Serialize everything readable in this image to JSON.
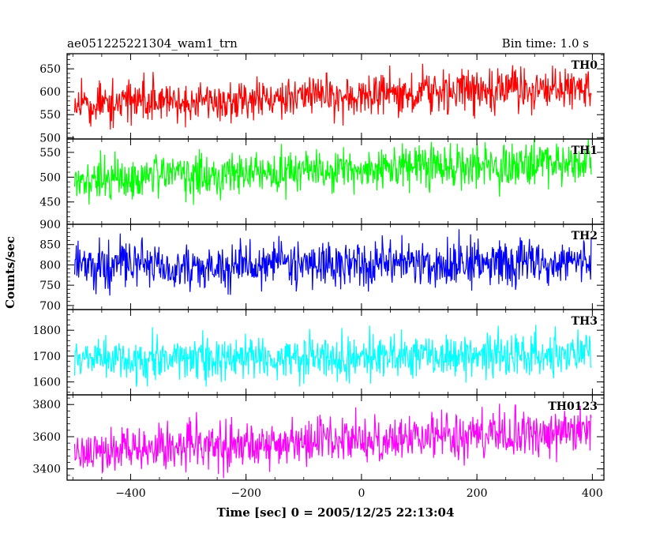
{
  "header": {
    "title": "ae051225221304_wam1_trn",
    "bin_time": "Bin time: 1.0 s"
  },
  "chart_data": {
    "type": "line",
    "title": "ae051225221304_wam1_trn",
    "subtitle": "Bin time: 1.0 s",
    "xlabel": "Time [sec] 0 = 2005/12/25 22:13:04",
    "ylabel": "Counts/sec",
    "xlim": [
      -510,
      420
    ],
    "x_ticks": [
      -400,
      -200,
      0,
      200,
      400
    ],
    "x_tick_labels": [
      "−400",
      "−200",
      "0",
      "200",
      "400"
    ],
    "bin_time_s": 1.0,
    "x_range_data": [
      -497,
      398
    ],
    "panels": [
      {
        "name": "TH0",
        "color": "#ff0000",
        "ylim": [
          497,
          683
        ],
        "yticks": [
          500,
          550,
          600,
          650
        ],
        "trend_start": 570,
        "trend_end": 610,
        "noise_sd": 23,
        "dip_at": 399,
        "dip_value": 528
      },
      {
        "name": "TH1",
        "color": "#00ff00",
        "ylim": [
          405,
          577
        ],
        "yticks": [
          450,
          500,
          550
        ],
        "trend_start": 493,
        "trend_end": 530,
        "noise_sd": 22
      },
      {
        "name": "TH2",
        "color": "#0000ff",
        "ylim": [
          690,
          900
        ],
        "yticks": [
          700,
          750,
          800,
          850,
          900
        ],
        "trend_start": 800,
        "trend_end": 805,
        "noise_sd": 28
      },
      {
        "name": "TH3",
        "color": "#00ffff",
        "ylim": [
          1550,
          1880
        ],
        "yticks": [
          1600,
          1700,
          1800
        ],
        "trend_start": 1690,
        "trend_end": 1705,
        "noise_sd": 42
      },
      {
        "name": "TH0123",
        "color": "#ff00ff",
        "ylim": [
          3330,
          3860
        ],
        "yticks": [
          3400,
          3600,
          3800
        ],
        "trend_start": 3500,
        "trend_end": 3640,
        "noise_sd": 70
      }
    ]
  }
}
